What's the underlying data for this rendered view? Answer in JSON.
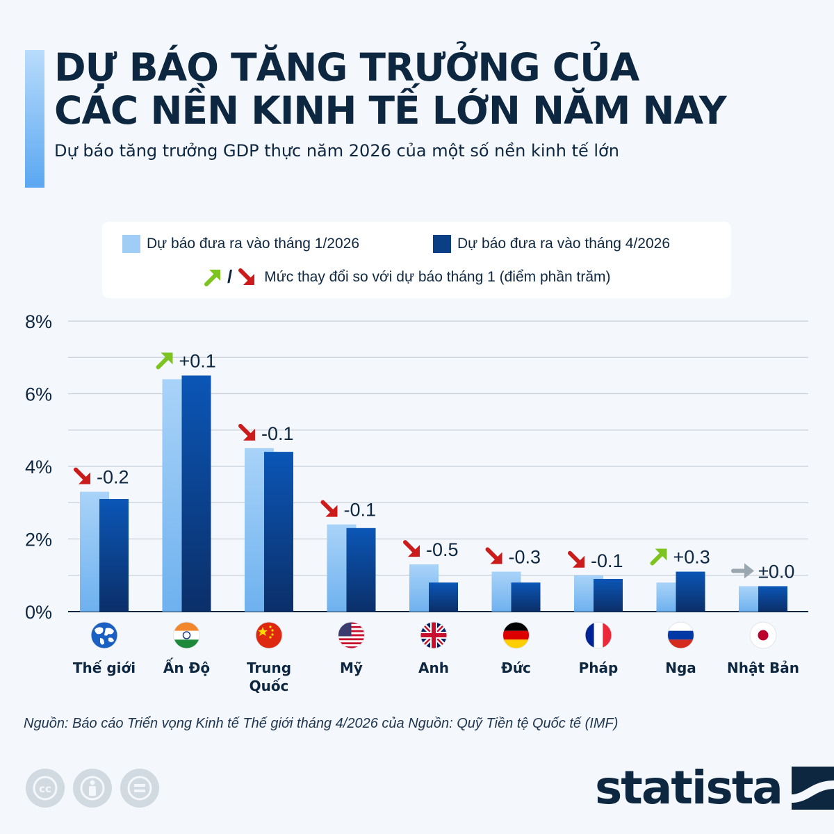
{
  "header": {
    "title_line1": "DỰ BÁO TĂNG TRƯỞNG CỦA",
    "title_line2": "CÁC NỀN KINH TẾ LỚN NĂM NAY",
    "subtitle": "Dự báo tăng trưởng GDP thực năm 2026 của một số nền kinh tế lớn"
  },
  "legend": {
    "jan_label": "Dự báo đưa ra vào tháng 1/2026",
    "apr_label": "Dự báo đưa ra vào tháng 4/2026",
    "separator": "/",
    "change_label": "Mức thay đổi so với dự báo tháng 1 (điểm phần trăm)"
  },
  "colors": {
    "jan_bar": "#9fcdf6",
    "apr_bar": "#0a3f86",
    "up": "#7dc421",
    "down": "#cc1b1b",
    "neutral": "#9aa7b1",
    "grid": "#c8d0d8"
  },
  "chart_data": {
    "type": "bar",
    "title": "Dự báo tăng trưởng GDP thực năm 2026 của một số nền kinh tế lớn",
    "xlabel": "",
    "ylabel": "",
    "ylim": [
      0,
      8
    ],
    "yticks": [
      "0%",
      "2%",
      "4%",
      "6%",
      "8%"
    ],
    "categories": [
      "Thế giới",
      "Ấn Độ",
      "Trung Quốc",
      "Mỹ",
      "Anh",
      "Đức",
      "Pháp",
      "Nga",
      "Nhật Bản"
    ],
    "flags": [
      "world",
      "india",
      "china",
      "usa",
      "uk",
      "germany",
      "france",
      "russia",
      "japan"
    ],
    "series": [
      {
        "name": "Dự báo đưa ra vào tháng 1/2026",
        "values": [
          3.3,
          6.4,
          4.5,
          2.4,
          1.3,
          1.1,
          1.0,
          0.8,
          0.7
        ]
      },
      {
        "name": "Dự báo đưa ra vào tháng 4/2026",
        "values": [
          3.1,
          6.5,
          4.4,
          2.3,
          0.8,
          0.8,
          0.9,
          1.1,
          0.7
        ]
      }
    ],
    "changes": [
      "-0.2",
      "+0.1",
      "-0.1",
      "-0.1",
      "-0.5",
      "-0.3",
      "-0.1",
      "+0.3",
      "±0.0"
    ],
    "change_direction": [
      "down",
      "up",
      "down",
      "down",
      "down",
      "down",
      "down",
      "up",
      "neutral"
    ]
  },
  "footer": {
    "source": "Nguồn: Báo cáo Triển vọng Kinh tế Thế giới tháng 4/2026 của Nguồn: Quỹ Tiền tệ Quốc tế (IMF)",
    "logo": "statista"
  }
}
